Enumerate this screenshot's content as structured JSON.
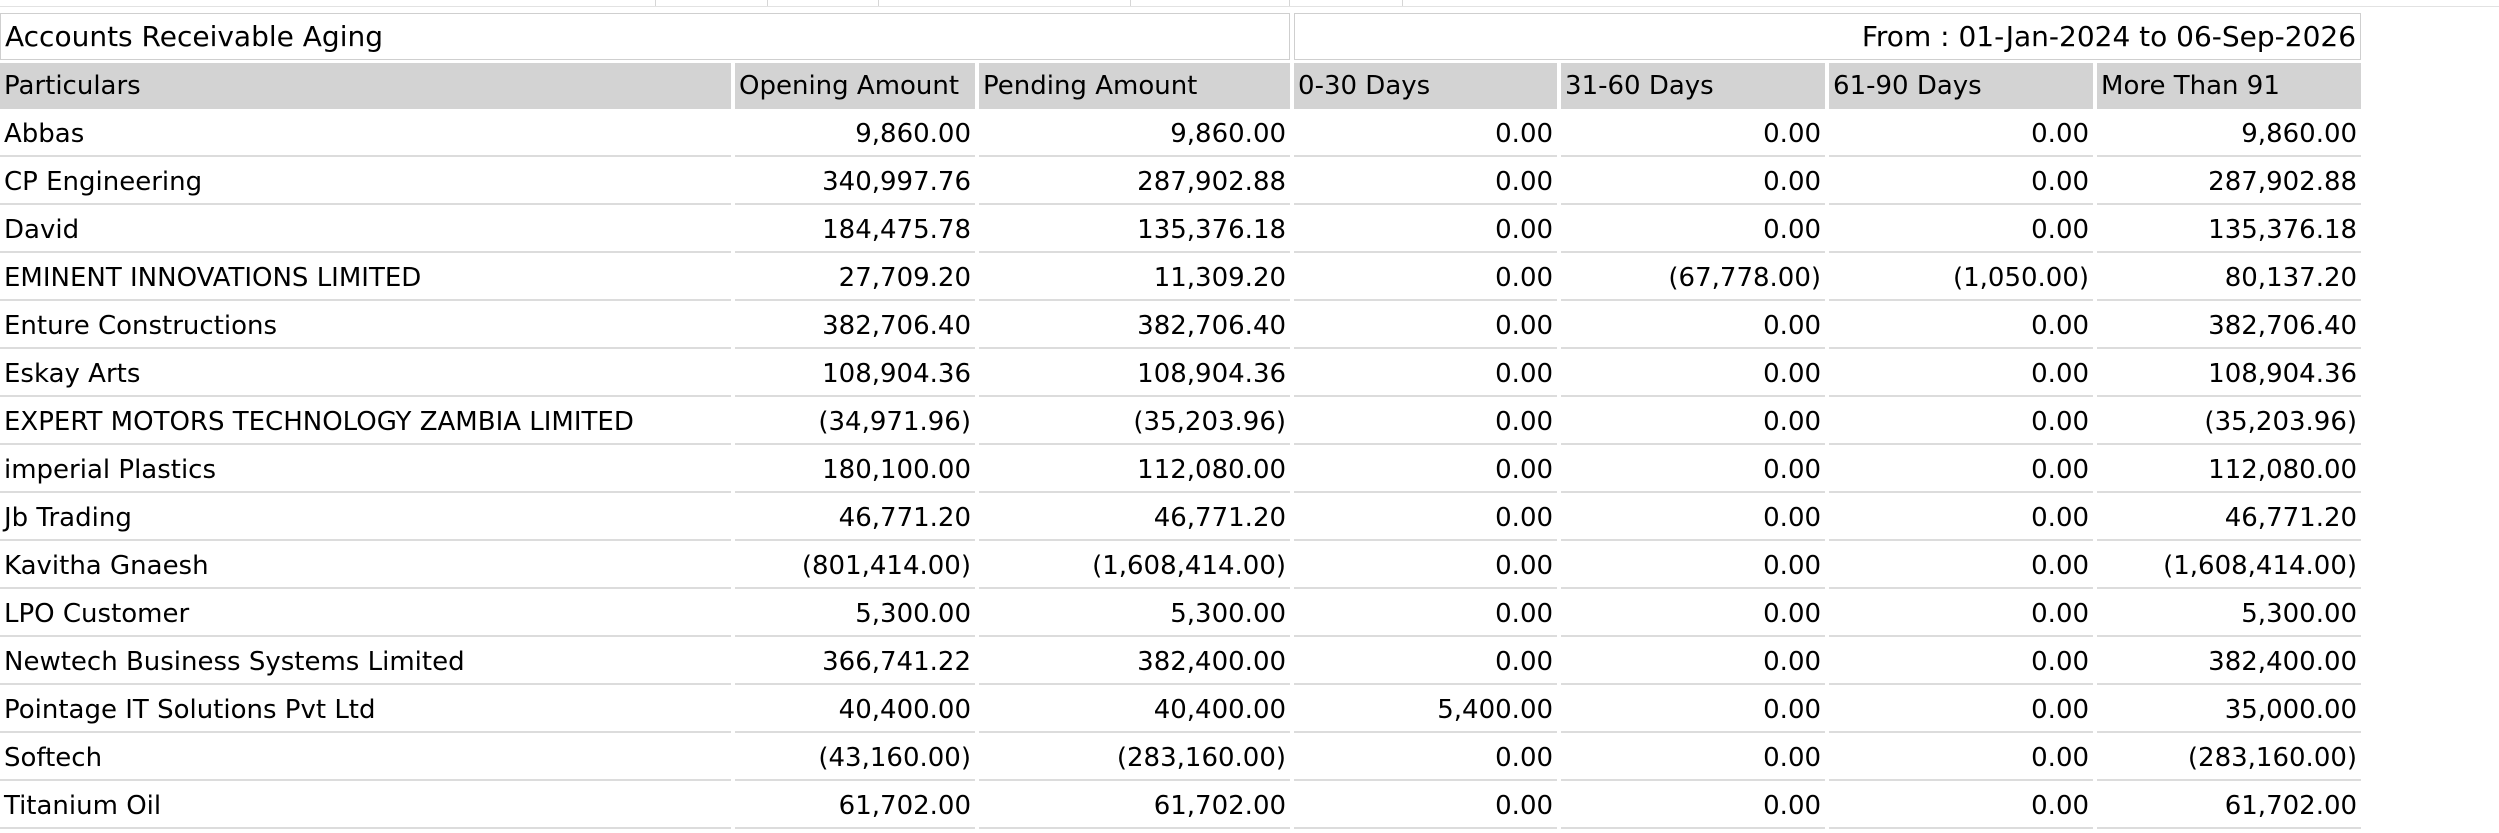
{
  "report": {
    "title": "Accounts Receivable Aging",
    "period": "From : 01-Jan-2024  to  06-Sep-2026"
  },
  "columns": [
    "Particulars",
    "Opening Amount",
    "Pending Amount",
    "0-30 Days",
    "31-60 Days",
    "61-90 Days",
    "More Than 91"
  ],
  "rows": [
    [
      "Abbas",
      "9,860.00",
      "9,860.00",
      "0.00",
      "0.00",
      "0.00",
      "9,860.00"
    ],
    [
      "CP Engineering",
      "340,997.76",
      "287,902.88",
      "0.00",
      "0.00",
      "0.00",
      "287,902.88"
    ],
    [
      "David",
      "184,475.78",
      "135,376.18",
      "0.00",
      "0.00",
      "0.00",
      "135,376.18"
    ],
    [
      "EMINENT INNOVATIONS LIMITED",
      "27,709.20",
      "11,309.20",
      "0.00",
      "(67,778.00)",
      "(1,050.00)",
      "80,137.20"
    ],
    [
      "Enture Constructions",
      "382,706.40",
      "382,706.40",
      "0.00",
      "0.00",
      "0.00",
      "382,706.40"
    ],
    [
      "Eskay Arts",
      "108,904.36",
      "108,904.36",
      "0.00",
      "0.00",
      "0.00",
      "108,904.36"
    ],
    [
      "EXPERT MOTORS TECHNOLOGY ZAMBIA LIMITED",
      "(34,971.96)",
      "(35,203.96)",
      "0.00",
      "0.00",
      "0.00",
      "(35,203.96)"
    ],
    [
      "imperial Plastics",
      "180,100.00",
      "112,080.00",
      "0.00",
      "0.00",
      "0.00",
      "112,080.00"
    ],
    [
      "Jb Trading",
      "46,771.20",
      "46,771.20",
      "0.00",
      "0.00",
      "0.00",
      "46,771.20"
    ],
    [
      "Kavitha Gnaesh",
      "(801,414.00)",
      "(1,608,414.00)",
      "0.00",
      "0.00",
      "0.00",
      "(1,608,414.00)"
    ],
    [
      "LPO Customer",
      "5,300.00",
      "5,300.00",
      "0.00",
      "0.00",
      "0.00",
      "5,300.00"
    ],
    [
      "Newtech Business Systems Limited",
      "366,741.22",
      "382,400.00",
      "0.00",
      "0.00",
      "0.00",
      "382,400.00"
    ],
    [
      "Pointage IT Solutions Pvt Ltd",
      "40,400.00",
      "40,400.00",
      "5,400.00",
      "0.00",
      "0.00",
      "35,000.00"
    ],
    [
      "Softech",
      "(43,160.00)",
      "(283,160.00)",
      "0.00",
      "0.00",
      "0.00",
      "(283,160.00)"
    ],
    [
      "Titanium Oil",
      "61,702.00",
      "61,702.00",
      "0.00",
      "0.00",
      "0.00",
      "61,702.00"
    ]
  ]
}
